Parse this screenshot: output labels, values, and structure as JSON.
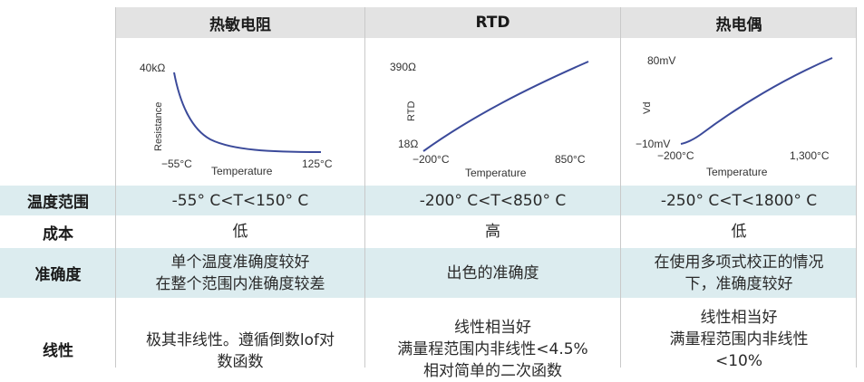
{
  "headers": {
    "col1": "热敏电阻",
    "col2": "RTD",
    "col3": "热电偶"
  },
  "charts": {
    "thermistor": {
      "y_top_label": "40kΩ",
      "y_axis_label": "Resistance",
      "x_left_label": "−55°C",
      "x_right_label": "125°C",
      "x_axis_label": "Temperature",
      "curve_color": "#3b4a9a"
    },
    "rtd": {
      "y_top_label": "390Ω",
      "y_bottom_label": "18Ω",
      "y_axis_label": "RTD",
      "x_left_label": "−200°C",
      "x_right_label": "850°C",
      "x_axis_label": "Temperature",
      "curve_color": "#3b4a9a"
    },
    "thermocouple": {
      "y_top_label": "80mV",
      "y_bottom_label": "−10mV",
      "y_axis_label": "Vd",
      "x_left_label": "−200°C",
      "x_right_label": "1,300°C",
      "x_axis_label": "Temperature",
      "curve_color": "#3b4a9a"
    }
  },
  "rows": {
    "range": {
      "label": "温度范围",
      "c1": "-55° C<T<150° C",
      "c2": "-200° C<T<850° C",
      "c3": "-250° C<T<1800° C"
    },
    "cost": {
      "label": "成本",
      "c1": "低",
      "c2": "高",
      "c3": "低"
    },
    "accuracy": {
      "label": "准确度",
      "c1_l1": "单个温度准确度较好",
      "c1_l2": "在整个范围内准确度较差",
      "c2": "出色的准确度",
      "c3_l1": "在使用多项式校正的情况",
      "c3_l2": "下，准确度较好"
    },
    "linearity": {
      "label": "线性",
      "c1_l1": "极其非线性。遵循倒数lof对",
      "c1_l2": "数函数",
      "c2_l1": "线性相当好",
      "c2_l2": "满量程范围内非线性<4.5%",
      "c2_l3": "相对简单的二次函数",
      "c3_l1": "线性相当好",
      "c3_l2": "满量程范围内非线性",
      "c3_l3": "<10%"
    }
  },
  "colors": {
    "header_bg": "#e3e3e3",
    "shade_bg": "#dcecef",
    "curve": "#3b4a9a"
  }
}
